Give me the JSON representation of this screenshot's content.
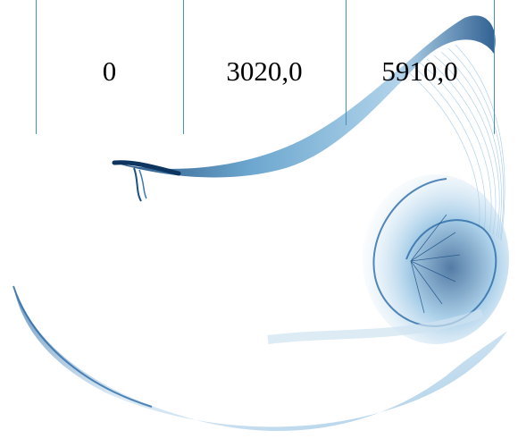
{
  "table": {
    "cells": [
      "0",
      "3020,0",
      "5910,0"
    ]
  },
  "colors": {
    "swirl_light": "#cfe3f1",
    "swirl_mid": "#6aa8d2",
    "swirl_dark": "#1a4f86",
    "grid_line": "#4a90b8"
  }
}
